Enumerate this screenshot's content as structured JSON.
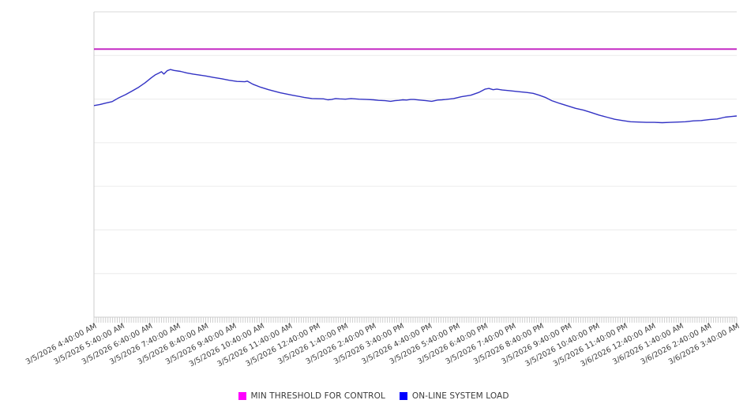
{
  "chart_data": {
    "type": "line",
    "title": "",
    "x_axis": {
      "labels": [
        "3/5/2026 4:40:00 AM",
        "3/5/2026 5:40:00 AM",
        "3/5/2026 6:40:00 AM",
        "3/5/2026 7:40:00 AM",
        "3/5/2026 8:40:00 AM",
        "3/5/2026 9:40:00 AM",
        "3/5/2026 10:40:00 AM",
        "3/5/2026 11:40:00 AM",
        "3/5/2026 12:40:00 PM",
        "3/5/2026 1:40:00 PM",
        "3/5/2026 2:40:00 PM",
        "3/5/2026 3:40:00 PM",
        "3/5/2026 4:40:00 PM",
        "3/5/2026 5:40:00 PM",
        "3/5/2026 6:40:00 PM",
        "3/5/2026 7:40:00 PM",
        "3/5/2026 8:40:00 PM",
        "3/5/2026 9:40:00 PM",
        "3/5/2026 10:40:00 PM",
        "3/5/2026 11:40:00 PM",
        "3/6/2026 12:40:00 AM",
        "3/6/2026 1:40:00 AM",
        "3/6/2026 2:40:00 AM",
        "3/6/2026 3:40:00 AM"
      ],
      "label_interval_minutes": 60,
      "minor_tick_minutes": 5,
      "span_minutes": 1380
    },
    "y_axis": {
      "labels_visible": false,
      "ylim": [
        0,
        100
      ],
      "grid_divisions": 7,
      "grid_on": true
    },
    "series": [
      {
        "name": "MIN THRESHOLD FOR CONTROL",
        "type": "horizontal-threshold",
        "value": 87.8,
        "color": "#c42ac4"
      },
      {
        "name": "ON-LINE SYSTEM LOAD",
        "type": "line",
        "color": "#3232c4",
        "points": [
          [
            0,
            69.3
          ],
          [
            12,
            69.6
          ],
          [
            25,
            70.1
          ],
          [
            39,
            70.6
          ],
          [
            54,
            71.9
          ],
          [
            68,
            72.9
          ],
          [
            81,
            74.0
          ],
          [
            96,
            75.3
          ],
          [
            110,
            76.8
          ],
          [
            123,
            78.4
          ],
          [
            132,
            79.4
          ],
          [
            139,
            79.9
          ],
          [
            145,
            80.4
          ],
          [
            150,
            79.6
          ],
          [
            157,
            80.7
          ],
          [
            164,
            81.1
          ],
          [
            172,
            80.8
          ],
          [
            186,
            80.5
          ],
          [
            199,
            80.0
          ],
          [
            213,
            79.6
          ],
          [
            226,
            79.3
          ],
          [
            240,
            79.0
          ],
          [
            257,
            78.5
          ],
          [
            274,
            78.1
          ],
          [
            290,
            77.6
          ],
          [
            307,
            77.2
          ],
          [
            324,
            77.1
          ],
          [
            329,
            77.3
          ],
          [
            334,
            76.9
          ],
          [
            341,
            76.3
          ],
          [
            358,
            75.3
          ],
          [
            375,
            74.5
          ],
          [
            400,
            73.5
          ],
          [
            426,
            72.7
          ],
          [
            451,
            72.0
          ],
          [
            468,
            71.6
          ],
          [
            493,
            71.5
          ],
          [
            502,
            71.2
          ],
          [
            510,
            71.3
          ],
          [
            519,
            71.6
          ],
          [
            527,
            71.5
          ],
          [
            540,
            71.4
          ],
          [
            552,
            71.6
          ],
          [
            569,
            71.4
          ],
          [
            586,
            71.3
          ],
          [
            600,
            71.2
          ],
          [
            611,
            71.0
          ],
          [
            625,
            70.9
          ],
          [
            637,
            70.7
          ],
          [
            646,
            70.9
          ],
          [
            654,
            71.0
          ],
          [
            663,
            71.2
          ],
          [
            671,
            71.1
          ],
          [
            680,
            71.3
          ],
          [
            687,
            71.3
          ],
          [
            699,
            71.1
          ],
          [
            713,
            70.9
          ],
          [
            725,
            70.7
          ],
          [
            738,
            71.1
          ],
          [
            747,
            71.2
          ],
          [
            755,
            71.3
          ],
          [
            772,
            71.6
          ],
          [
            789,
            72.2
          ],
          [
            809,
            72.7
          ],
          [
            826,
            73.6
          ],
          [
            840,
            74.7
          ],
          [
            848,
            74.9
          ],
          [
            857,
            74.5
          ],
          [
            865,
            74.7
          ],
          [
            877,
            74.4
          ],
          [
            890,
            74.2
          ],
          [
            902,
            74.0
          ],
          [
            916,
            73.8
          ],
          [
            929,
            73.6
          ],
          [
            943,
            73.3
          ],
          [
            956,
            72.7
          ],
          [
            970,
            71.9
          ],
          [
            983,
            70.9
          ],
          [
            1000,
            70.0
          ],
          [
            1017,
            69.2
          ],
          [
            1034,
            68.4
          ],
          [
            1051,
            67.8
          ],
          [
            1068,
            67.0
          ],
          [
            1084,
            66.2
          ],
          [
            1101,
            65.5
          ],
          [
            1118,
            64.8
          ],
          [
            1135,
            64.4
          ],
          [
            1152,
            64.0
          ],
          [
            1169,
            63.9
          ],
          [
            1186,
            63.8
          ],
          [
            1203,
            63.8
          ],
          [
            1220,
            63.7
          ],
          [
            1237,
            63.8
          ],
          [
            1254,
            63.9
          ],
          [
            1270,
            64.0
          ],
          [
            1287,
            64.3
          ],
          [
            1304,
            64.4
          ],
          [
            1321,
            64.7
          ],
          [
            1338,
            64.9
          ],
          [
            1355,
            65.5
          ],
          [
            1368,
            65.7
          ],
          [
            1380,
            65.9
          ]
        ]
      }
    ],
    "legend": [
      {
        "label": "MIN THRESHOLD FOR CONTROL",
        "swatch_color": "#ff00ff"
      },
      {
        "label": "ON-LINE SYSTEM LOAD",
        "swatch_color": "#0000ff"
      }
    ],
    "legend_position": "bottom-center"
  }
}
